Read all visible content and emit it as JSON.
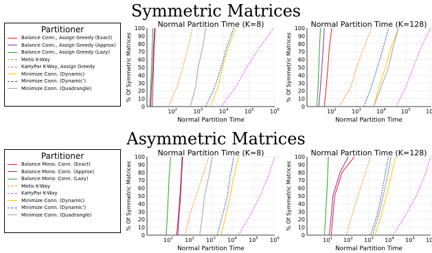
{
  "sections": [
    {
      "title": "Symmetric Matrices",
      "legend_title": "Partitioner",
      "legend": [
        "Balance Conn., Assign Greedy (Exact)",
        "Balance Conn., Assign Greedy (Approx)",
        "Balance Conn., Assign Greedy (Lazy)",
        "Metis K-Way",
        "KaHyPar K-Way, Assign Greedy",
        "Minimize Conn. (Dynamic)",
        "Minimize Conn. (Dynamic')",
        "Minimize Conn. (Quadrangle)"
      ]
    },
    {
      "title": "Asymmetric Matrices",
      "legend_title": "Partitioner",
      "legend": [
        "Balance Mono. Conn. (Exact)",
        "Balance Mono. Conn. (Approx)",
        "Balance Mono. Conn. (Lazy)",
        "Metis K-Way",
        "KaHyPar K-Way",
        "Minimize Conn. (Dynamic)",
        "Minimize Conn. (Dynamic')",
        "Minimize Conn. (Quadrangle)"
      ]
    }
  ],
  "series_styles": [
    {
      "color": "#e31a1c",
      "dash": "solid"
    },
    {
      "color": "#8e24aa",
      "dash": "solid"
    },
    {
      "color": "#2ca02c",
      "dash": "solid"
    },
    {
      "color": "#ff7f0e",
      "dash": "dashed"
    },
    {
      "color": "#e040fb",
      "dash": "dashed"
    },
    {
      "color": "#ffc107",
      "dash": "solid"
    },
    {
      "color": "#1f4fbf",
      "dash": "dashed"
    },
    {
      "color": "#9e9e9e",
      "dash": "solid"
    }
  ],
  "chart_data": [
    {
      "type": "line",
      "title": "Normal Partition Time (K=8)",
      "xlabel": "Normal Partition Time",
      "ylabel": "% Of Symmetric Matrices",
      "xscale": "log",
      "xlim": [
        10,
        1000000
      ],
      "ylim": [
        0,
        100
      ],
      "xticks": [
        "10^2",
        "10^3",
        "10^4",
        "10^5",
        "10^6"
      ],
      "yticks": [
        "0",
        "10",
        "20",
        "30",
        "40",
        "50",
        "60",
        "70",
        "80",
        "90",
        "100"
      ],
      "series": [
        {
          "x": [
            16,
            17,
            18,
            19,
            21
          ],
          "y": [
            0,
            25,
            50,
            75,
            100
          ]
        },
        {
          "x": [
            14,
            15,
            17,
            18,
            20
          ],
          "y": [
            0,
            25,
            50,
            75,
            100
          ]
        },
        {
          "x": [
            13,
            14,
            15,
            16,
            17
          ],
          "y": [
            0,
            25,
            50,
            75,
            100
          ]
        },
        {
          "x": [
            70,
            150,
            250,
            400,
            600
          ],
          "y": [
            0,
            25,
            50,
            75,
            100
          ]
        },
        {
          "x": [
            8000,
            30000,
            80000,
            250000,
            900000
          ],
          "y": [
            0,
            25,
            50,
            75,
            100
          ]
        },
        {
          "x": [
            3000,
            6000,
            9000,
            15000,
            30000
          ],
          "y": [
            0,
            25,
            50,
            75,
            100
          ]
        },
        {
          "x": [
            2000,
            4500,
            8000,
            13000,
            25000
          ],
          "y": [
            0,
            25,
            50,
            75,
            100
          ]
        },
        {
          "x": [
            500,
            800,
            1000,
            1500,
            2000
          ],
          "y": [
            0,
            25,
            50,
            75,
            100
          ]
        }
      ]
    },
    {
      "type": "line",
      "title": "Normal Partition Time (K=128)",
      "xlabel": "Normal Partition Time",
      "ylabel": "% Of Symmetric Matrices",
      "xscale": "log",
      "xlim": [
        10,
        1000000
      ],
      "ylim": [
        0,
        100
      ],
      "xticks": [
        "10^2",
        "10^3",
        "10^4",
        "10^5",
        "10^6"
      ],
      "yticks": [
        "0",
        "10",
        "20",
        "30",
        "40",
        "50",
        "60",
        "70",
        "80",
        "90",
        "100"
      ],
      "series": [
        {
          "x": [
            50,
            60,
            70,
            80,
            100
          ],
          "y": [
            0,
            25,
            50,
            75,
            100
          ]
        },
        {
          "x": [
            30,
            35,
            40,
            45,
            50
          ],
          "y": [
            0,
            25,
            50,
            75,
            100
          ]
        },
        {
          "x": [
            25,
            28,
            30,
            32,
            35
          ],
          "y": [
            0,
            25,
            50,
            75,
            100
          ]
        },
        {
          "x": [
            200,
            600,
            1000,
            2000,
            4000
          ],
          "y": [
            0,
            25,
            50,
            75,
            100
          ]
        },
        {
          "x": [
            40000,
            100000,
            200000,
            400000,
            1500000
          ],
          "y": [
            0,
            25,
            50,
            75,
            100
          ]
        },
        {
          "x": [
            5000,
            8000,
            15000,
            25000,
            50000
          ],
          "y": [
            0,
            25,
            50,
            75,
            100
          ]
        },
        {
          "x": [
            2000,
            4000,
            7000,
            12000,
            20000
          ],
          "y": [
            0,
            25,
            50,
            75,
            100
          ]
        },
        {
          "x": [
            5000,
            10000,
            20000,
            30000,
            50000
          ],
          "y": [
            0,
            25,
            50,
            75,
            100
          ]
        }
      ]
    },
    {
      "type": "line",
      "title": "Normal Partition Time (K=8)",
      "xlabel": "Normal Partition Time",
      "ylabel": "% Of Symmetric Matrices",
      "xscale": "log",
      "xlim": [
        1,
        1000000
      ],
      "ylim": [
        0,
        100
      ],
      "xticks": [
        "10^1",
        "10^2",
        "10^3",
        "10^4",
        "10^5",
        "10^6"
      ],
      "yticks": [
        "0",
        "10",
        "20",
        "30",
        "40",
        "50",
        "60",
        "70",
        "80",
        "90",
        "100"
      ],
      "series": [
        {
          "x": [
            25,
            30,
            35,
            40,
            45
          ],
          "y": [
            0,
            25,
            50,
            75,
            100
          ]
        },
        {
          "x": [
            28,
            32,
            38,
            42,
            48
          ],
          "y": [
            0,
            25,
            50,
            75,
            100
          ]
        },
        {
          "x": [
            8,
            9,
            10,
            11,
            13
          ],
          "y": [
            0,
            25,
            50,
            75,
            100
          ]
        },
        {
          "x": [
            60,
            100,
            200,
            400,
            800
          ],
          "y": [
            0,
            25,
            50,
            75,
            100
          ]
        },
        {
          "x": [
            20000,
            70000,
            200000,
            500000,
            1500000
          ],
          "y": [
            0,
            25,
            50,
            75,
            100
          ]
        },
        {
          "x": [
            3000,
            5000,
            8000,
            12000,
            20000
          ],
          "y": [
            0,
            25,
            50,
            75,
            100
          ]
        },
        {
          "x": [
            2000,
            3500,
            6000,
            8000,
            12000
          ],
          "y": [
            0,
            25,
            50,
            75,
            100
          ]
        },
        {
          "x": [
            300,
            400,
            500,
            800,
            1200
          ],
          "y": [
            0,
            25,
            50,
            75,
            100
          ]
        }
      ]
    },
    {
      "type": "line",
      "title": "Normal Partition Time (K=128)",
      "xlabel": "Normal Partition Time",
      "ylabel": "% Of Symmetric Matrices",
      "xscale": "log",
      "xlim": [
        1,
        1000000
      ],
      "ylim": [
        0,
        100
      ],
      "xticks": [
        "10^1",
        "10^2",
        "10^3",
        "10^4",
        "10^5",
        "10^6"
      ],
      "yticks": [
        "0",
        "10",
        "20",
        "30",
        "40",
        "50",
        "60",
        "70",
        "80",
        "90",
        "100"
      ],
      "series": [
        {
          "x": [
            15,
            18,
            22,
            50,
            200
          ],
          "y": [
            0,
            25,
            50,
            80,
            100
          ]
        },
        {
          "x": [
            12,
            15,
            18,
            40,
            100
          ],
          "y": [
            0,
            25,
            50,
            80,
            100
          ]
        },
        {
          "x": [
            7,
            8,
            9,
            10,
            11
          ],
          "y": [
            0,
            25,
            50,
            75,
            100
          ]
        },
        {
          "x": [
            80,
            150,
            300,
            600,
            1200
          ],
          "y": [
            0,
            25,
            50,
            75,
            100
          ]
        },
        {
          "x": [
            15000,
            60000,
            200000,
            500000,
            1500000
          ],
          "y": [
            0,
            25,
            50,
            75,
            100
          ]
        },
        {
          "x": [
            2000,
            4000,
            7000,
            12000,
            20000
          ],
          "y": [
            0,
            25,
            50,
            75,
            100
          ]
        },
        {
          "x": [
            1200,
            2500,
            4000,
            6000,
            9000
          ],
          "y": [
            0,
            25,
            50,
            75,
            100
          ]
        },
        {
          "x": [
            1500,
            3000,
            5000,
            8000,
            12000
          ],
          "y": [
            0,
            25,
            50,
            75,
            100
          ]
        }
      ]
    }
  ]
}
